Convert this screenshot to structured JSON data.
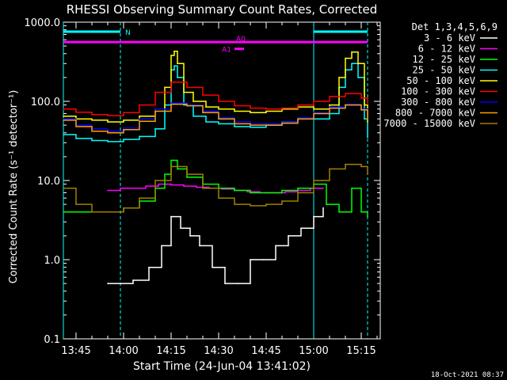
{
  "chart_data": {
    "type": "line",
    "title": "RHESSI Observing Summary Count Rates, Corrected",
    "xlabel": "Start Time (24-Jun-04 13:41:02)",
    "ylabel": "Corrected Count Rate (s⁻¹ detector⁻¹)",
    "y_scale": "log",
    "ylim": [
      0.1,
      1000
    ],
    "xlim": [
      "13:41",
      "15:21"
    ],
    "x_ticks": [
      "13:45",
      "14:00",
      "14:15",
      "14:30",
      "14:45",
      "15:00",
      "15:15"
    ],
    "y_ticks": [
      "0.1",
      "1.0",
      "10.0",
      "100.0",
      "1000.0"
    ],
    "legend_title": "Det 1,3,4,5,6,9",
    "legend_position": "right",
    "timestamp": "18-Oct-2021 08:37",
    "night_bars": [
      {
        "label": "N",
        "x_start": "13:41",
        "x_end": "13:59",
        "color": "#00ffff"
      },
      {
        "label": "",
        "x_start": "15:00",
        "x_end": "15:17",
        "color": "#00ffff"
      }
    ],
    "attenuator_bars": [
      {
        "label": "A0",
        "x_start": "13:41",
        "x_end": "15:17",
        "y": 560,
        "color": "#ff00ff"
      },
      {
        "label": "A1",
        "x_start": "14:35",
        "x_end": "14:38",
        "y": 460,
        "color": "#ff00ff"
      }
    ],
    "cyan_solid_lines": [
      "13:41",
      "15:00"
    ],
    "cyan_dashed_lines": [
      "13:59",
      "15:17"
    ],
    "series": [
      {
        "name": "3 - 6 keV",
        "color": "#ffffff",
        "x": [
          "13:55",
          "13:59",
          "14:03",
          "14:08",
          "14:12",
          "14:15",
          "14:18",
          "14:21",
          "14:24",
          "14:28",
          "14:32",
          "14:36",
          "14:40",
          "14:44",
          "14:48",
          "14:52",
          "14:56",
          "15:00",
          "15:03"
        ],
        "values": [
          0.5,
          0.5,
          0.55,
          0.8,
          1.5,
          3.5,
          2.5,
          2.0,
          1.5,
          0.8,
          0.5,
          0.5,
          1.0,
          1.0,
          1.5,
          2.0,
          2.5,
          3.5,
          4.5
        ]
      },
      {
        "name": "6 - 12 keV",
        "color": "#ff00ff",
        "x": [
          "13:55",
          "13:59",
          "14:03",
          "14:07",
          "14:11",
          "14:15",
          "14:19",
          "14:23",
          "14:27",
          "14:31",
          "14:35",
          "14:39",
          "14:43",
          "14:47",
          "14:51",
          "14:55",
          "14:59",
          "15:03"
        ],
        "values": [
          7.5,
          8.0,
          8.0,
          8.5,
          9.0,
          8.8,
          8.5,
          8.2,
          8.0,
          7.8,
          7.5,
          7.2,
          7.0,
          7.0,
          7.2,
          7.5,
          8.0,
          8.0
        ]
      },
      {
        "name": "12 - 25 keV",
        "color": "#00ff00",
        "x": [
          "13:41",
          "13:45",
          "13:50",
          "13:55",
          "14:00",
          "14:05",
          "14:10",
          "14:13",
          "14:15",
          "14:17",
          "14:20",
          "14:25",
          "14:30",
          "14:35",
          "14:40",
          "14:45",
          "14:50",
          "14:55",
          "15:00",
          "15:04",
          "15:08",
          "15:12",
          "15:15",
          "15:17"
        ],
        "values": [
          4.0,
          4.0,
          4.0,
          4.0,
          4.5,
          5.5,
          8.0,
          12.0,
          18.0,
          14.0,
          11.0,
          9.0,
          8.0,
          7.5,
          7.0,
          7.0,
          7.5,
          8.0,
          9.0,
          5.0,
          4.0,
          8.0,
          4.0,
          3.5
        ]
      },
      {
        "name": "25 - 50 keV",
        "color": "#00ffff",
        "x": [
          "13:41",
          "13:45",
          "13:50",
          "13:55",
          "14:00",
          "14:05",
          "14:10",
          "14:13",
          "14:15",
          "14:16",
          "14:17",
          "14:19",
          "14:22",
          "14:26",
          "14:30",
          "14:35",
          "14:40",
          "14:45",
          "14:50",
          "14:55",
          "15:00",
          "15:05",
          "15:08",
          "15:10",
          "15:12",
          "15:14",
          "15:16",
          "15:17"
        ],
        "values": [
          38,
          34,
          32,
          31,
          33,
          36,
          45,
          90,
          250,
          280,
          200,
          90,
          65,
          55,
          52,
          48,
          47,
          50,
          55,
          60,
          60,
          70,
          150,
          250,
          300,
          200,
          60,
          35
        ]
      },
      {
        "name": "50 - 100 keV",
        "color": "#ffff00",
        "x": [
          "13:41",
          "13:45",
          "13:50",
          "13:55",
          "14:00",
          "14:05",
          "14:10",
          "14:13",
          "14:15",
          "14:16",
          "14:17",
          "14:19",
          "14:22",
          "14:26",
          "14:30",
          "14:35",
          "14:40",
          "14:45",
          "14:50",
          "14:55",
          "15:00",
          "15:05",
          "15:08",
          "15:10",
          "15:12",
          "15:14",
          "15:16",
          "15:17"
        ],
        "values": [
          65,
          60,
          58,
          55,
          58,
          65,
          80,
          150,
          380,
          430,
          300,
          130,
          100,
          85,
          80,
          75,
          72,
          75,
          80,
          85,
          80,
          90,
          200,
          350,
          420,
          300,
          90,
          55
        ]
      },
      {
        "name": "100 - 300 keV",
        "color": "#ff0000",
        "x": [
          "13:41",
          "13:45",
          "13:50",
          "13:55",
          "14:00",
          "14:05",
          "14:10",
          "14:15",
          "14:20",
          "14:25",
          "14:30",
          "14:35",
          "14:40",
          "14:45",
          "14:50",
          "14:55",
          "15:00",
          "15:05",
          "15:10",
          "15:15",
          "15:17"
        ],
        "values": [
          80,
          73,
          68,
          66,
          72,
          90,
          130,
          175,
          150,
          120,
          100,
          88,
          82,
          80,
          82,
          90,
          100,
          115,
          125,
          110,
          95
        ]
      },
      {
        "name": "300 - 800 keV",
        "color": "#0000ff",
        "x": [
          "13:41",
          "13:45",
          "13:50",
          "13:55",
          "14:00",
          "14:05",
          "14:10",
          "14:15",
          "14:20",
          "14:25",
          "14:30",
          "14:35",
          "14:40",
          "14:45",
          "14:50",
          "14:55",
          "15:00",
          "15:05",
          "15:10",
          "15:15",
          "15:17"
        ],
        "values": [
          60,
          50,
          45,
          42,
          46,
          60,
          80,
          95,
          90,
          75,
          62,
          55,
          52,
          52,
          55,
          62,
          72,
          85,
          92,
          80,
          60
        ]
      },
      {
        "name": "800 - 7000 keV",
        "color": "#ffa000",
        "x": [
          "13:41",
          "13:45",
          "13:50",
          "13:55",
          "14:00",
          "14:05",
          "14:10",
          "14:15",
          "14:20",
          "14:25",
          "14:30",
          "14:35",
          "14:40",
          "14:45",
          "14:50",
          "14:55",
          "15:00",
          "15:05",
          "15:10",
          "15:15",
          "15:17"
        ],
        "values": [
          58,
          48,
          42,
          40,
          44,
          56,
          75,
          92,
          88,
          72,
          60,
          52,
          50,
          50,
          53,
          60,
          70,
          82,
          90,
          78,
          58
        ]
      },
      {
        "name": "7000 - 15000 keV",
        "color": "#a08000",
        "x": [
          "13:41",
          "13:45",
          "13:50",
          "13:55",
          "14:00",
          "14:05",
          "14:10",
          "14:15",
          "14:20",
          "14:25",
          "14:30",
          "14:35",
          "14:40",
          "14:45",
          "14:50",
          "14:55",
          "15:00",
          "15:05",
          "15:10",
          "15:15",
          "15:17"
        ],
        "values": [
          8.0,
          5.0,
          4.0,
          4.0,
          4.5,
          6.0,
          10.0,
          15.0,
          12.0,
          8.0,
          6.0,
          5.0,
          4.8,
          5.0,
          5.5,
          7.0,
          10.0,
          14.0,
          16.0,
          15.0,
          12.0
        ]
      }
    ]
  }
}
